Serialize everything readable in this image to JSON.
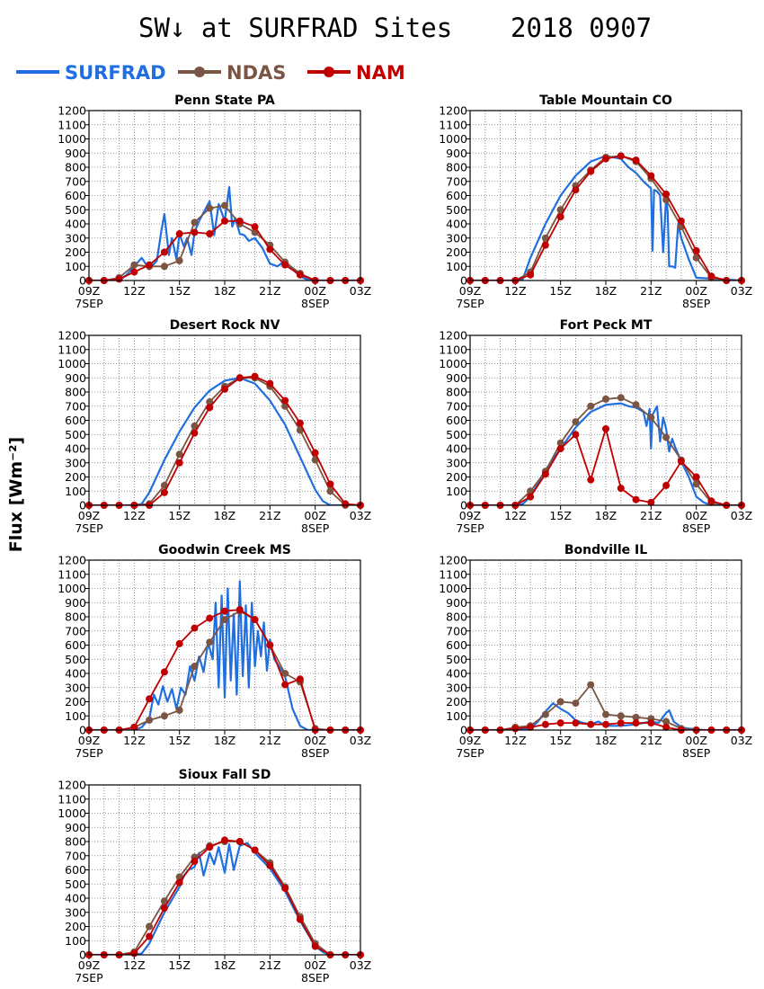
{
  "figure": {
    "title_left": "SW↓ at SURFRAD Sites",
    "title_right": "2018 0907",
    "ylabel": "Flux [Wm⁻²]"
  },
  "legend": [
    {
      "name": "SURFRAD",
      "color": "#1f6fe0",
      "marker": "none"
    },
    {
      "name": "NDAS",
      "color": "#7b5544",
      "marker": "circle"
    },
    {
      "name": "NAM",
      "color": "#c00000",
      "marker": "circle"
    }
  ],
  "axis": {
    "x_ticks": [
      {
        "h": 0,
        "label": "09Z",
        "sub": "7SEP"
      },
      {
        "h": 3,
        "label": "12Z"
      },
      {
        "h": 6,
        "label": "15Z"
      },
      {
        "h": 9,
        "label": "18Z"
      },
      {
        "h": 12,
        "label": "21Z"
      },
      {
        "h": 15,
        "label": "00Z",
        "sub": "8SEP"
      },
      {
        "h": 18,
        "label": "03Z"
      }
    ],
    "y_ticks": [
      0,
      100,
      200,
      300,
      400,
      500,
      600,
      700,
      800,
      900,
      1000,
      1100,
      1200
    ],
    "x_range": [
      0,
      18
    ],
    "y_range": [
      0,
      1200
    ]
  },
  "chart_data": [
    {
      "type": "line",
      "title": "Penn State PA",
      "x_unit": "hours since 09Z 7SEP",
      "series": [
        {
          "name": "SURFRAD",
          "x": [
            0,
            2,
            2.5,
            3,
            3.5,
            4,
            4.5,
            4.8,
            5,
            5.3,
            5.5,
            5.8,
            6,
            6.3,
            6.5,
            6.8,
            7,
            7.3,
            7.6,
            8,
            8.3,
            8.6,
            9,
            9.3,
            9.5,
            9.7,
            10,
            10.3,
            10.6,
            11,
            11.5,
            12,
            12.5,
            13,
            13.5,
            14,
            14.5,
            15,
            18
          ],
          "y": [
            0,
            0,
            40,
            100,
            160,
            80,
            140,
            350,
            470,
            180,
            300,
            150,
            330,
            240,
            300,
            180,
            340,
            420,
            480,
            560,
            320,
            540,
            420,
            660,
            380,
            440,
            330,
            320,
            280,
            300,
            230,
            120,
            100,
            140,
            80,
            30,
            5,
            0,
            0
          ]
        },
        {
          "name": "NDAS",
          "x": [
            0,
            1,
            2,
            3,
            4,
            5,
            6,
            7,
            8,
            9,
            10,
            11,
            12,
            13,
            14,
            15,
            16,
            17,
            18
          ],
          "y": [
            0,
            0,
            20,
            110,
            100,
            100,
            140,
            410,
            510,
            530,
            400,
            340,
            250,
            130,
            50,
            0,
            0,
            0,
            0
          ]
        },
        {
          "name": "NAM",
          "x": [
            0,
            1,
            2,
            3,
            4,
            5,
            6,
            7,
            8,
            9,
            10,
            11,
            12,
            13,
            14,
            15,
            16,
            17,
            18
          ],
          "y": [
            0,
            0,
            10,
            60,
            110,
            200,
            330,
            340,
            330,
            420,
            420,
            380,
            220,
            110,
            40,
            0,
            0,
            0,
            0
          ]
        }
      ]
    },
    {
      "type": "line",
      "title": "Table Mountain CO",
      "x_unit": "hours since 09Z 7SEP",
      "series": [
        {
          "name": "SURFRAD",
          "x": [
            0,
            3,
            3.5,
            4,
            5,
            6,
            7,
            8,
            9,
            10,
            10.5,
            11,
            11.5,
            12,
            12.1,
            12.2,
            12.4,
            12.6,
            12.8,
            13,
            13.1,
            13.2,
            13.4,
            13.6,
            13.8,
            14,
            14.5,
            15,
            18
          ],
          "y": [
            0,
            0,
            10,
            160,
            400,
            600,
            740,
            840,
            880,
            860,
            800,
            760,
            700,
            650,
            210,
            640,
            630,
            600,
            200,
            580,
            490,
            100,
            100,
            90,
            400,
            300,
            150,
            20,
            0
          ]
        },
        {
          "name": "NDAS",
          "x": [
            0,
            1,
            2,
            3,
            4,
            5,
            6,
            7,
            8,
            9,
            10,
            11,
            12,
            13,
            14,
            15,
            16,
            17,
            18
          ],
          "y": [
            0,
            0,
            0,
            0,
            60,
            300,
            500,
            670,
            780,
            870,
            880,
            840,
            720,
            570,
            380,
            160,
            20,
            0,
            0
          ]
        },
        {
          "name": "NAM",
          "x": [
            0,
            1,
            2,
            3,
            4,
            5,
            6,
            7,
            8,
            9,
            10,
            11,
            12,
            13,
            14,
            15,
            16,
            17,
            18
          ],
          "y": [
            0,
            0,
            0,
            0,
            40,
            250,
            450,
            640,
            770,
            860,
            880,
            850,
            740,
            610,
            420,
            210,
            30,
            0,
            0
          ]
        }
      ]
    },
    {
      "type": "line",
      "title": "Desert Rock NV",
      "x_unit": "hours since 09Z 7SEP",
      "series": [
        {
          "name": "SURFRAD",
          "x": [
            0,
            3,
            3.5,
            4,
            5,
            6,
            7,
            8,
            9,
            10,
            11,
            12,
            13,
            14,
            15,
            15.5,
            16,
            18
          ],
          "y": [
            0,
            0,
            10,
            90,
            320,
            520,
            690,
            810,
            880,
            900,
            860,
            740,
            570,
            340,
            110,
            30,
            0,
            0
          ]
        },
        {
          "name": "NDAS",
          "x": [
            0,
            1,
            2,
            3,
            4,
            5,
            6,
            7,
            8,
            9,
            10,
            11,
            12,
            13,
            14,
            15,
            16,
            17,
            18
          ],
          "y": [
            0,
            0,
            0,
            0,
            10,
            140,
            360,
            560,
            730,
            840,
            900,
            900,
            840,
            700,
            530,
            320,
            100,
            0,
            0
          ]
        },
        {
          "name": "NAM",
          "x": [
            0,
            1,
            2,
            3,
            4,
            5,
            6,
            7,
            8,
            9,
            10,
            11,
            12,
            13,
            14,
            15,
            16,
            17,
            18
          ],
          "y": [
            0,
            0,
            0,
            0,
            0,
            90,
            300,
            510,
            690,
            820,
            900,
            910,
            860,
            740,
            580,
            370,
            150,
            10,
            0
          ]
        }
      ]
    },
    {
      "type": "line",
      "title": "Fort Peck MT",
      "x_unit": "hours since 09Z 7SEP",
      "series": [
        {
          "name": "SURFRAD",
          "x": [
            0,
            3,
            3.5,
            4,
            5,
            6,
            7,
            8,
            9,
            10,
            10.5,
            11,
            11.5,
            11.7,
            11.9,
            12,
            12.1,
            12.2,
            12.4,
            12.6,
            12.8,
            13,
            13.2,
            13.4,
            13.6,
            14,
            14.5,
            15,
            15.5,
            16,
            18
          ],
          "y": [
            0,
            0,
            10,
            60,
            250,
            400,
            550,
            660,
            710,
            720,
            700,
            690,
            660,
            560,
            680,
            400,
            640,
            660,
            700,
            450,
            620,
            540,
            380,
            470,
            410,
            310,
            200,
            60,
            20,
            0,
            0
          ]
        },
        {
          "name": "NDAS",
          "x": [
            0,
            1,
            2,
            3,
            4,
            5,
            6,
            7,
            8,
            9,
            10,
            11,
            12,
            13,
            14,
            15,
            16,
            17,
            18
          ],
          "y": [
            0,
            0,
            0,
            0,
            100,
            240,
            440,
            590,
            700,
            750,
            760,
            710,
            620,
            480,
            320,
            150,
            20,
            0,
            0
          ]
        },
        {
          "name": "NAM",
          "x": [
            0,
            1,
            2,
            3,
            4,
            5,
            6,
            7,
            8,
            9,
            10,
            11,
            12,
            13,
            14,
            15,
            16,
            17,
            18
          ],
          "y": [
            0,
            0,
            0,
            0,
            60,
            220,
            400,
            500,
            180,
            540,
            120,
            40,
            20,
            140,
            310,
            200,
            30,
            0,
            0
          ]
        }
      ]
    },
    {
      "type": "line",
      "title": "Goodwin Creek MS",
      "x_unit": "hours since 09Z 7SEP",
      "series": [
        {
          "name": "SURFRAD",
          "x": [
            0,
            3,
            3.5,
            4,
            4.3,
            4.6,
            4.9,
            5.2,
            5.5,
            5.8,
            6.1,
            6.4,
            6.7,
            7,
            7.3,
            7.6,
            7.9,
            8.2,
            8.4,
            8.6,
            8.8,
            9,
            9.2,
            9.4,
            9.6,
            9.8,
            10,
            10.2,
            10.4,
            10.6,
            10.8,
            11,
            11.2,
            11.4,
            11.6,
            11.8,
            12,
            12.3,
            12.6,
            13,
            13.5,
            14,
            14.5,
            18
          ],
          "y": [
            0,
            0,
            20,
            80,
            250,
            180,
            310,
            200,
            290,
            150,
            300,
            250,
            450,
            350,
            520,
            410,
            620,
            500,
            900,
            300,
            950,
            230,
            1000,
            350,
            820,
            250,
            1050,
            380,
            880,
            300,
            900,
            450,
            700,
            520,
            760,
            420,
            640,
            500,
            450,
            380,
            150,
            30,
            0,
            0
          ]
        },
        {
          "name": "NDAS",
          "x": [
            0,
            1,
            2,
            3,
            4,
            5,
            6,
            7,
            8,
            9,
            10,
            11,
            12,
            13,
            14,
            15,
            16,
            17,
            18
          ],
          "y": [
            0,
            0,
            0,
            20,
            70,
            100,
            140,
            450,
            620,
            780,
            840,
            780,
            600,
            400,
            340,
            10,
            0,
            0,
            0
          ]
        },
        {
          "name": "NAM",
          "x": [
            0,
            1,
            2,
            3,
            4,
            5,
            6,
            7,
            8,
            9,
            10,
            11,
            12,
            13,
            14,
            15,
            16,
            17,
            18
          ],
          "y": [
            0,
            0,
            0,
            20,
            220,
            410,
            610,
            720,
            790,
            840,
            850,
            780,
            600,
            320,
            360,
            0,
            0,
            0,
            0
          ]
        }
      ]
    },
    {
      "type": "line",
      "title": "Bondville IL",
      "x_unit": "hours since 09Z 7SEP",
      "series": [
        {
          "name": "SURFRAD",
          "x": [
            0,
            3,
            4,
            4.5,
            5,
            5.5,
            6,
            6.5,
            7,
            7.5,
            8,
            8.5,
            9,
            10,
            11,
            12,
            12.5,
            13,
            13.2,
            13.5,
            14,
            14.5,
            15,
            15.5,
            18
          ],
          "y": [
            0,
            0,
            10,
            60,
            130,
            190,
            150,
            120,
            70,
            50,
            40,
            60,
            30,
            30,
            40,
            60,
            50,
            120,
            140,
            60,
            20,
            10,
            5,
            0,
            0
          ]
        },
        {
          "name": "NDAS",
          "x": [
            0,
            1,
            2,
            3,
            4,
            5,
            6,
            7,
            8,
            9,
            10,
            11,
            12,
            13,
            14,
            15,
            16,
            17,
            18
          ],
          "y": [
            0,
            0,
            0,
            20,
            30,
            110,
            200,
            190,
            320,
            110,
            100,
            90,
            80,
            60,
            10,
            0,
            0,
            0,
            0
          ]
        },
        {
          "name": "NAM",
          "x": [
            0,
            1,
            2,
            3,
            4,
            5,
            6,
            7,
            8,
            9,
            10,
            11,
            12,
            13,
            14,
            15,
            16,
            17,
            18
          ],
          "y": [
            0,
            0,
            0,
            10,
            20,
            40,
            50,
            50,
            40,
            40,
            50,
            50,
            50,
            20,
            0,
            0,
            0,
            0,
            0
          ]
        }
      ]
    },
    {
      "type": "line",
      "title": "Sioux Fall SD",
      "x_unit": "hours since 09Z 7SEP",
      "series": [
        {
          "name": "SURFRAD",
          "x": [
            0,
            3,
            3.5,
            4,
            5,
            6,
            6.3,
            6.6,
            7,
            7.3,
            7.6,
            8,
            8.3,
            8.6,
            9,
            9.3,
            9.6,
            10,
            10.5,
            11,
            12,
            13,
            14,
            15,
            15.5,
            16,
            18
          ],
          "y": [
            0,
            0,
            10,
            80,
            300,
            480,
            560,
            600,
            620,
            720,
            560,
            720,
            640,
            760,
            580,
            780,
            600,
            770,
            790,
            720,
            610,
            450,
            240,
            60,
            20,
            0,
            0
          ]
        },
        {
          "name": "NDAS",
          "x": [
            0,
            1,
            2,
            3,
            4,
            5,
            6,
            7,
            8,
            9,
            10,
            11,
            12,
            13,
            14,
            15,
            16,
            17,
            18
          ],
          "y": [
            0,
            0,
            0,
            20,
            200,
            380,
            550,
            690,
            770,
            800,
            800,
            740,
            650,
            480,
            270,
            80,
            0,
            0,
            0
          ]
        },
        {
          "name": "NAM",
          "x": [
            0,
            1,
            2,
            3,
            4,
            5,
            6,
            7,
            8,
            9,
            10,
            11,
            12,
            13,
            14,
            15,
            16,
            17,
            18
          ],
          "y": [
            0,
            0,
            0,
            10,
            130,
            330,
            510,
            660,
            760,
            810,
            800,
            740,
            630,
            470,
            250,
            60,
            0,
            0,
            0
          ]
        }
      ]
    }
  ]
}
